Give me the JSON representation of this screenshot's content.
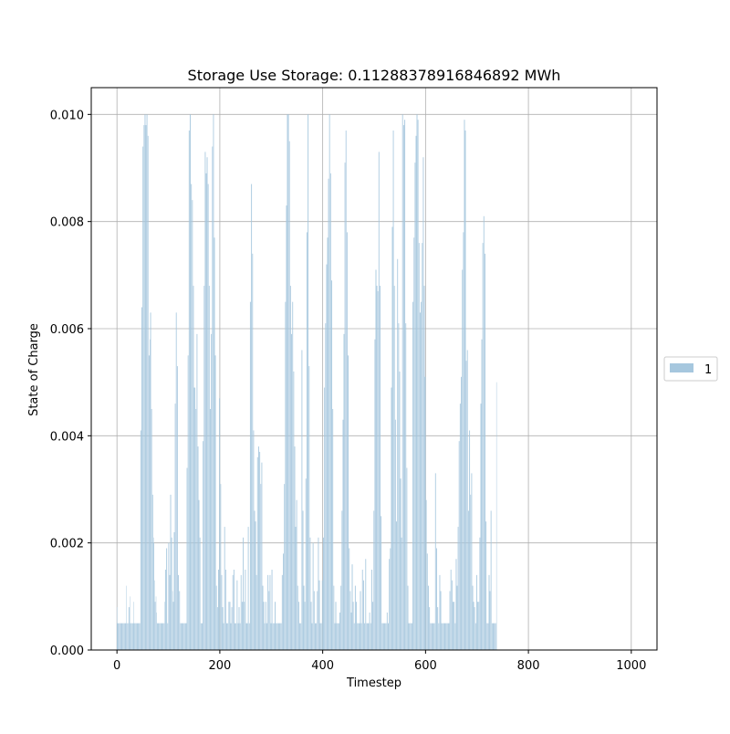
{
  "chart_data": {
    "type": "bar",
    "title": "Storage Use Storage: 0.11288378916846892 MWh",
    "xlabel": "Timestep",
    "ylabel": "State of Charge",
    "xlim": [
      -50,
      1050
    ],
    "ylim": [
      0,
      0.0105
    ],
    "xticks": [
      0,
      200,
      400,
      600,
      800,
      1000
    ],
    "yticks": [
      0.0,
      0.002,
      0.004,
      0.006,
      0.008,
      0.01
    ],
    "xtick_labels": [
      "0",
      "200",
      "400",
      "600",
      "800",
      "1000"
    ],
    "ytick_labels": [
      "0.000",
      "0.002",
      "0.004",
      "0.006",
      "0.008",
      "0.010"
    ],
    "grid": true,
    "legend_position": "right",
    "bar_color": "#a6c7de",
    "series": [
      {
        "name": "1",
        "x_start": 0,
        "x_step": 1,
        "note_values": "state of charge per timestep, approximate readings",
        "values": [
          0.0008,
          0.0005,
          0.0005,
          0.0005,
          0.0005,
          0.0005,
          0.0005,
          0.0005,
          0.0005,
          0.0005,
          0.0005,
          0.0005,
          0.0005,
          0.0005,
          0.0005,
          0.0005,
          0.0005,
          0.0005,
          0.0012,
          0.0005,
          0.0005,
          0.0005,
          0.0005,
          0.0008,
          0.0008,
          0.0005,
          0.001,
          0.0005,
          0.0005,
          0.0005,
          0.0005,
          0.0005,
          0.0005,
          0.0009,
          0.0005,
          0.0005,
          0.0005,
          0.0005,
          0.0005,
          0.0005,
          0.0005,
          0.0005,
          0.0005,
          0.0005,
          0.0005,
          0.0005,
          0.0041,
          0.0041,
          0.0064,
          0.0064,
          0.0094,
          0.0094,
          0.0098,
          0.0098,
          0.01,
          0.01,
          0.0098,
          0.0098,
          0.01,
          0.01,
          0.0096,
          0.0096,
          0.0055,
          0.0055,
          0.0058,
          0.0063,
          0.0063,
          0.0045,
          0.0045,
          0.0029,
          0.0029,
          0.0021,
          0.002,
          0.0013,
          0.0009,
          0.0009,
          0.001,
          0.0007,
          0.0005,
          0.0005,
          0.0005,
          0.0005,
          0.0005,
          0.0005,
          0.0005,
          0.0005,
          0.0005,
          0.0005,
          0.0005,
          0.0005,
          0.0005,
          0.0005,
          0.0005,
          0.0009,
          0.0015,
          0.0015,
          0.0019,
          0.0019,
          0.0005,
          0.0005,
          0.002,
          0.002,
          0.0014,
          0.0014,
          0.0029,
          0.0029,
          0.0021,
          0.0021,
          0.0011,
          0.0009,
          0.0009,
          0.0022,
          0.0022,
          0.0046,
          0.0046,
          0.0063,
          0.0063,
          0.0053,
          0.0053,
          0.0014,
          0.0014,
          0.0011,
          0.0011,
          0.0005,
          0.0005,
          0.0005,
          0.0005,
          0.0005,
          0.0005,
          0.0005,
          0.0005,
          0.0005,
          0.0005,
          0.0005,
          0.0005,
          0.0005,
          0.0034,
          0.0034,
          0.0055,
          0.0055,
          0.0097,
          0.0097,
          0.01,
          0.01,
          0.0087,
          0.0087,
          0.0084,
          0.0084,
          0.0068,
          0.0068,
          0.0049,
          0.0049,
          0.0049,
          0.0045,
          0.0045,
          0.0059,
          0.0059,
          0.0038,
          0.0038,
          0.0028,
          0.0028,
          0.0021,
          0.0021,
          0.0005,
          0.0005,
          0.0005,
          0.0005,
          0.0039,
          0.0039,
          0.0068,
          0.0068,
          0.0093,
          0.0093,
          0.0089,
          0.0089,
          0.0092,
          0.0092,
          0.0087,
          0.0087,
          0.0068,
          0.0068,
          0.0045,
          0.0045,
          0.0059,
          0.0059,
          0.0094,
          0.0094,
          0.01,
          0.01,
          0.0077,
          0.0077,
          0.0055,
          0.0055,
          0.0012,
          0.0012,
          0.0008,
          0.0008,
          0.0015,
          0.0015,
          0.0047,
          0.0047,
          0.0031,
          0.0031,
          0.0014,
          0.0014,
          0.0008,
          0.0008,
          0.0005,
          0.0005,
          0.0023,
          0.0023,
          0.0015,
          0.0015,
          0.0005,
          0.0005,
          0.0005,
          0.0005,
          0.0009,
          0.0009,
          0.0009,
          0.0009,
          0.0005,
          0.0005,
          0.0008,
          0.0008,
          0.0014,
          0.0014,
          0.0015,
          0.0015,
          0.0005,
          0.0005,
          0.0005,
          0.0005,
          0.0013,
          0.0013,
          0.0005,
          0.0005,
          0.0008,
          0.0008,
          0.0005,
          0.0005,
          0.0014,
          0.0014,
          0.0009,
          0.0009,
          0.0021,
          0.0021,
          0.0009,
          0.0009,
          0.0015,
          0.0015,
          0.0005,
          0.0005,
          0.0005,
          0.0005,
          0.0023,
          0.0023,
          0.0005,
          0.0005,
          0.0065,
          0.0065,
          0.0087,
          0.0087,
          0.0074,
          0.0074,
          0.0041,
          0.0041,
          0.0026,
          0.0026,
          0.0024,
          0.0024,
          0.0014,
          0.0014,
          0.0036,
          0.0036,
          0.0038,
          0.0038,
          0.0037,
          0.0037,
          0.0031,
          0.0031,
          0.0035,
          0.0035,
          0.0012,
          0.0012,
          0.0009,
          0.0009,
          0.0005,
          0.0005,
          0.0009,
          0.0009,
          0.0005,
          0.0005,
          0.0014,
          0.0014,
          0.0011,
          0.0011,
          0.0014,
          0.0014,
          0.0005,
          0.0005,
          0.0015,
          0.0015,
          0.0005,
          0.0005,
          0.0005,
          0.0005,
          0.0009,
          0.0009,
          0.0005,
          0.0005,
          0.0005,
          0.0005,
          0.0005,
          0.0005,
          0.0005,
          0.0005,
          0.0005,
          0.0005,
          0.0005,
          0.0005,
          0.0014,
          0.0014,
          0.0018,
          0.0018,
          0.0031,
          0.0031,
          0.0065,
          0.0065,
          0.0083,
          0.0083,
          0.01,
          0.01,
          0.01,
          0.01,
          0.0095,
          0.0095,
          0.0068,
          0.0068,
          0.0059,
          0.0059,
          0.0065,
          0.0065,
          0.0052,
          0.0052,
          0.0038,
          0.0038,
          0.0023,
          0.0023,
          0.0028,
          0.0028,
          0.0012,
          0.0012,
          0.0009,
          0.0009,
          0.0005,
          0.0005,
          0.0005,
          0.0005,
          0.0056,
          0.0056,
          0.0026,
          0.0026,
          0.0012,
          0.0012,
          0.0009,
          0.0009,
          0.0032,
          0.0032,
          0.0078,
          0.0078,
          0.01,
          0.01,
          0.0053,
          0.0053,
          0.0021,
          0.0021,
          0.0009,
          0.0009,
          0.0005,
          0.0005,
          0.002,
          0.002,
          0.0011,
          0.0011,
          0.0005,
          0.0005,
          0.0005,
          0.0005,
          0.0011,
          0.0011,
          0.0021,
          0.0021,
          0.0013,
          0.0013,
          0.0005,
          0.0005,
          0.0005,
          0.0005,
          0.0013,
          0.0013,
          0.0021,
          0.0021,
          0.0049,
          0.0049,
          0.0061,
          0.0061,
          0.0072,
          0.0072,
          0.0077,
          0.0077,
          0.0088,
          0.0088,
          0.01,
          0.01,
          0.0089,
          0.0089,
          0.0069,
          0.0069,
          0.0045,
          0.0045,
          0.0012,
          0.0012,
          0.0005,
          0.0005,
          0.0009,
          0.0009,
          0.0005,
          0.0005,
          0.0005,
          0.0005,
          0.0005,
          0.0005,
          0.0007,
          0.0007,
          0.0012,
          0.0012,
          0.0026,
          0.0026,
          0.0043,
          0.0043,
          0.0059,
          0.0059,
          0.0091,
          0.0091,
          0.0097,
          0.0097,
          0.0078,
          0.0078,
          0.0055,
          0.0055,
          0.0019,
          0.0019,
          0.0011,
          0.0011,
          0.0007,
          0.0007,
          0.0016,
          0.0016,
          0.0009,
          0.0009,
          0.0005,
          0.0005,
          0.0012,
          0.0012,
          0.0009,
          0.0009,
          0.0005,
          0.0005,
          0.0005,
          0.0005,
          0.0005,
          0.0005,
          0.0011,
          0.0011,
          0.0005,
          0.0005,
          0.0015,
          0.0015,
          0.0013,
          0.0013,
          0.0005,
          0.0005,
          0.0017,
          0.0017,
          0.0005,
          0.0005,
          0.0005,
          0.0005,
          0.0005,
          0.0005,
          0.0007,
          0.0007,
          0.0005,
          0.0005,
          0.0015,
          0.0015,
          0.0009,
          0.0009,
          0.0026,
          0.0026,
          0.0058,
          0.0058,
          0.0071,
          0.0071,
          0.0068,
          0.0068,
          0.0067,
          0.0067,
          0.0093,
          0.0093,
          0.0068,
          0.0068,
          0.0025,
          0.0025,
          0.0005,
          0.0005,
          0.0005,
          0.0005,
          0.0005,
          0.0005,
          0.0005,
          0.0005,
          0.0005,
          0.0005,
          0.0007,
          0.0007,
          0.0005,
          0.0005,
          0.0017,
          0.0017,
          0.0019,
          0.0019,
          0.0049,
          0.0049,
          0.0079,
          0.0079,
          0.0097,
          0.0097,
          0.0068,
          0.0068,
          0.0043,
          0.0043,
          0.0024,
          0.0024,
          0.0073,
          0.0073,
          0.0061,
          0.0061,
          0.0052,
          0.0052,
          0.0032,
          0.0032,
          0.0021,
          0.0021,
          0.01,
          0.01,
          0.0098,
          0.0098,
          0.0099,
          0.0099,
          0.0061,
          0.0061,
          0.0034,
          0.0034,
          0.0012,
          0.0012,
          0.0005,
          0.0005,
          0.0005,
          0.0005,
          0.0005,
          0.0005,
          0.0005,
          0.0005,
          0.0065,
          0.0065,
          0.0077,
          0.0077,
          0.0091,
          0.0091,
          0.0096,
          0.0096,
          0.01,
          0.01,
          0.0099,
          0.0099,
          0.0076,
          0.0076,
          0.0063,
          0.0063,
          0.0065,
          0.0065,
          0.0076,
          0.0076,
          0.0092,
          0.0092,
          0.0068,
          0.0068,
          0.0051,
          0.0051,
          0.0028,
          0.0028,
          0.0018,
          0.0018,
          0.0012,
          0.0012,
          0.0008,
          0.0008,
          0.0005,
          0.0005,
          0.0005,
          0.0005,
          0.0005,
          0.0005,
          0.0005,
          0.0005,
          0.0005,
          0.0005,
          0.0033,
          0.0033,
          0.0019,
          0.0019,
          0.0008,
          0.0008,
          0.0005,
          0.0005,
          0.0014,
          0.0014,
          0.0011,
          0.0011,
          0.0005,
          0.0005,
          0.0005,
          0.0005,
          0.0005,
          0.0005,
          0.0005,
          0.0005,
          0.0005,
          0.0005,
          0.0005,
          0.0005,
          0.0005,
          0.0005,
          0.0005,
          0.0005,
          0.0011,
          0.0011,
          0.0015,
          0.0015,
          0.0013,
          0.0013,
          0.0009,
          0.0009,
          0.0009,
          0.0009,
          0.0005,
          0.0005,
          0.0017,
          0.0017,
          0.0012,
          0.0012,
          0.0023,
          0.0023,
          0.0039,
          0.0039,
          0.0046,
          0.0046,
          0.0051,
          0.0051,
          0.0071,
          0.0071,
          0.0078,
          0.0078,
          0.0099,
          0.0099,
          0.0097,
          0.0097,
          0.0054,
          0.0054,
          0.0056,
          0.0056,
          0.0026,
          0.0026,
          0.0041,
          0.0041,
          0.0029,
          0.0029,
          0.0033,
          0.0033,
          0.0012,
          0.0012,
          0.0009,
          0.0009,
          0.0008,
          0.0008,
          0.0005,
          0.0005,
          0.0014,
          0.0014,
          0.0009,
          0.0009,
          0.0009,
          0.0009,
          0.0021,
          0.0021,
          0.0046,
          0.0046,
          0.0058,
          0.0058,
          0.0076,
          0.0076,
          0.0081,
          0.0081,
          0.0074,
          0.0074,
          0.0024,
          0.0024,
          0.0005,
          0.0005,
          0.0005,
          0.0005,
          0.0014,
          0.0014,
          0.0011,
          0.0011,
          0.0026,
          0.0026,
          0.0005,
          0.0005,
          0.0005,
          0.0005,
          0.0005,
          0.0005,
          0.0005,
          0.0005,
          0.0005,
          0.005
        ]
      }
    ]
  }
}
